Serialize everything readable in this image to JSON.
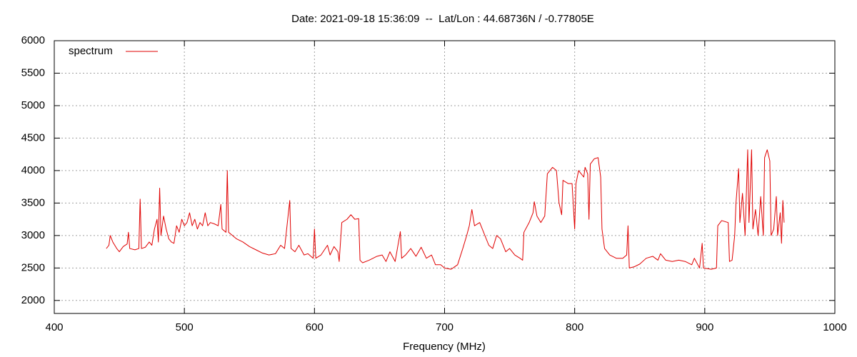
{
  "chart_data": {
    "type": "line",
    "title": "Date: 2021-09-18 15:36:09  --  Lat/Lon : 44.68736N / -0.77805E",
    "x_label": "Frequency (MHz)",
    "xlim": [
      400,
      1000
    ],
    "xticks": [
      400,
      500,
      600,
      700,
      800,
      900,
      1000
    ],
    "ylim": [
      1800,
      6000
    ],
    "yticks": [
      2000,
      2500,
      3000,
      3500,
      4000,
      4500,
      5000,
      5500,
      6000
    ],
    "grid": true,
    "legend": "upper left",
    "x": [
      440,
      442,
      443,
      445,
      448,
      450,
      453,
      456,
      457,
      458,
      462,
      465,
      466,
      467,
      470,
      473,
      475,
      477,
      479,
      480,
      481,
      482,
      484,
      486,
      488,
      490,
      492,
      494,
      496,
      498,
      500,
      502,
      504,
      506,
      508,
      510,
      512,
      514,
      516,
      518,
      520,
      523,
      526,
      528,
      529,
      532,
      533,
      534,
      537,
      540,
      545,
      550,
      555,
      560,
      565,
      570,
      574,
      577,
      581,
      582,
      585,
      588,
      592,
      595,
      599,
      600,
      601,
      605,
      610,
      612,
      615,
      618,
      619,
      621,
      625,
      628,
      631,
      634,
      635,
      637,
      642,
      648,
      652,
      655,
      658,
      662,
      666,
      667,
      670,
      674,
      678,
      682,
      686,
      690,
      693,
      697,
      700,
      705,
      710,
      714,
      717,
      719,
      721,
      723,
      727,
      730,
      734,
      737,
      740,
      743,
      747,
      750,
      754,
      758,
      760,
      761,
      765,
      768,
      769,
      771,
      774,
      777,
      779,
      783,
      786,
      788,
      790,
      791,
      795,
      798,
      800,
      801,
      803,
      805,
      807,
      808,
      810,
      811,
      812,
      815,
      818,
      820,
      821,
      823,
      827,
      832,
      837,
      840,
      841,
      842,
      846,
      850,
      855,
      860,
      864,
      866,
      870,
      875,
      880,
      885,
      890,
      892,
      896,
      898,
      899,
      905,
      909,
      910,
      913,
      918,
      919,
      921,
      923,
      924,
      926,
      927,
      929,
      931,
      933,
      934,
      936,
      937,
      939,
      941,
      943,
      945,
      946,
      948,
      950,
      951,
      953,
      955,
      956,
      958,
      959,
      960,
      961
    ],
    "series": [
      {
        "name": "spectrum",
        "color": "#e00000",
        "values": [
          2800,
          2850,
          3000,
          2900,
          2800,
          2750,
          2830,
          2870,
          3050,
          2800,
          2780,
          2800,
          3560,
          2800,
          2820,
          2900,
          2850,
          3100,
          3250,
          2900,
          3730,
          3000,
          3300,
          3100,
          2950,
          2900,
          2880,
          3150,
          3050,
          3250,
          3150,
          3200,
          3350,
          3150,
          3250,
          3100,
          3200,
          3150,
          3350,
          3150,
          3200,
          3180,
          3150,
          3480,
          3100,
          3050,
          4000,
          3050,
          3000,
          2950,
          2900,
          2830,
          2780,
          2730,
          2700,
          2720,
          2850,
          2800,
          3540,
          2800,
          2750,
          2850,
          2700,
          2720,
          2650,
          3100,
          2650,
          2700,
          2850,
          2700,
          2830,
          2750,
          2600,
          3200,
          3250,
          3320,
          3250,
          3260,
          2620,
          2580,
          2620,
          2680,
          2700,
          2600,
          2750,
          2600,
          3060,
          2650,
          2700,
          2800,
          2680,
          2820,
          2650,
          2700,
          2550,
          2550,
          2500,
          2480,
          2550,
          2800,
          3000,
          3150,
          3400,
          3150,
          3200,
          3050,
          2850,
          2800,
          3000,
          2950,
          2750,
          2800,
          2700,
          2650,
          2620,
          3050,
          3200,
          3350,
          3520,
          3300,
          3200,
          3300,
          3950,
          4050,
          4000,
          3500,
          3320,
          3850,
          3800,
          3800,
          3100,
          3800,
          4000,
          3950,
          3900,
          4050,
          3950,
          3250,
          4100,
          4180,
          4200,
          3900,
          3100,
          2800,
          2700,
          2650,
          2650,
          2700,
          3150,
          2500,
          2520,
          2560,
          2650,
          2680,
          2620,
          2720,
          2620,
          2600,
          2620,
          2600,
          2550,
          2650,
          2500,
          2880,
          2500,
          2480,
          2500,
          3150,
          3230,
          3200,
          2600,
          2620,
          3000,
          3500,
          4030,
          3200,
          3650,
          3000,
          4320,
          3200,
          4320,
          3100,
          3400,
          3000,
          3600,
          3000,
          4200,
          4320,
          4150,
          3000,
          3100,
          3600,
          3000,
          3350,
          2880,
          3540,
          3200
        ]
      }
    ]
  }
}
